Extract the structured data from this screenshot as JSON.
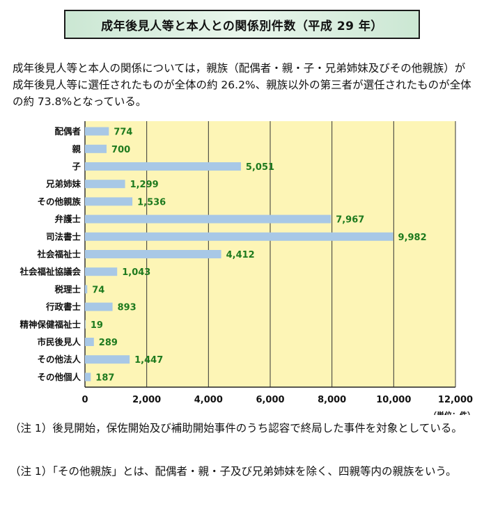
{
  "title": "成年後見人等と本人との関係別件数（平成 29 年）",
  "intro": "成年後見人等と本人の関係については，親族（配偶者・親・子・兄弟姉妹及びその他親族）が成年後見人等に選任されたものが全体の約 26.2%、親族以外の第三者が選任されたものが全体の約 73.8%となっている。",
  "notes": [
    "（注 1）後見開始，保佐開始及び補助開始事件のうち認容で終局した事件を対象としている。",
    "（注 1）「その他親族」とは、配偶者・親・子及び兄弟姉妹を除く、四親等内の親族をいう。"
  ],
  "chart_data": {
    "type": "bar",
    "orientation": "horizontal",
    "categories": [
      "配偶者",
      "親",
      "子",
      "兄弟姉妹",
      "その他親族",
      "弁護士",
      "司法書士",
      "社会福祉士",
      "社会福祉協議会",
      "税理士",
      "行政書士",
      "精神保健福祉士",
      "市民後見人",
      "その他法人",
      "その他個人"
    ],
    "values": [
      774,
      700,
      5051,
      1299,
      1536,
      7967,
      9982,
      4412,
      1043,
      74,
      893,
      19,
      289,
      1447,
      187
    ],
    "value_labels": [
      "774",
      "700",
      "5,051",
      "1,299",
      "1,536",
      "7,967",
      "9,982",
      "4,412",
      "1,043",
      "74",
      "893",
      "19",
      "289",
      "1,447",
      "187"
    ],
    "xticks": [
      0,
      2000,
      4000,
      6000,
      8000,
      10000,
      12000
    ],
    "xtick_labels": [
      "0",
      "2,000",
      "4,000",
      "6,000",
      "8,000",
      "10,000",
      "12,000"
    ],
    "xlim": [
      0,
      12000
    ],
    "unit_label": "（単位：件）",
    "grid": true,
    "colors": {
      "bar": "#a8c8e6",
      "plot_bg": "#fdf5b6",
      "value_label": "#1e7a1e",
      "grid": "#333333"
    }
  }
}
